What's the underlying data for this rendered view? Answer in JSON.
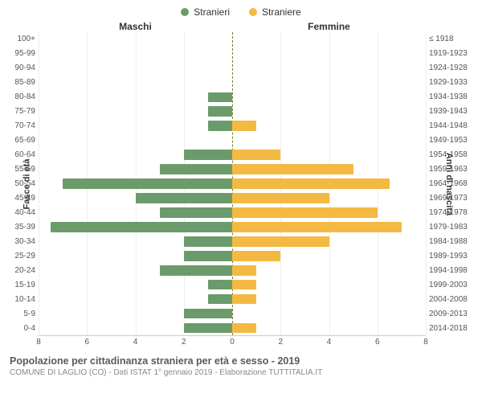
{
  "legend": {
    "male": "Stranieri",
    "female": "Straniere"
  },
  "colors": {
    "male": "#6b9b6b",
    "female": "#f4b942",
    "grid": "#eeeeee",
    "centerline": "#7a7a2a",
    "bg": "#ffffff"
  },
  "headers": {
    "left": "Maschi",
    "right": "Femmine"
  },
  "axis_titles": {
    "left": "Fasce di età",
    "right": "Anni di nascita"
  },
  "xmax": 8,
  "xticks": [
    8,
    6,
    4,
    2,
    0,
    2,
    4,
    6,
    8
  ],
  "rows": [
    {
      "age": "100+",
      "birth": "≤ 1918",
      "m": 0,
      "f": 0
    },
    {
      "age": "95-99",
      "birth": "1919-1923",
      "m": 0,
      "f": 0
    },
    {
      "age": "90-94",
      "birth": "1924-1928",
      "m": 0,
      "f": 0
    },
    {
      "age": "85-89",
      "birth": "1929-1933",
      "m": 0,
      "f": 0
    },
    {
      "age": "80-84",
      "birth": "1934-1938",
      "m": 1,
      "f": 0
    },
    {
      "age": "75-79",
      "birth": "1939-1943",
      "m": 1,
      "f": 0
    },
    {
      "age": "70-74",
      "birth": "1944-1948",
      "m": 1,
      "f": 1
    },
    {
      "age": "65-69",
      "birth": "1949-1953",
      "m": 0,
      "f": 0
    },
    {
      "age": "60-64",
      "birth": "1954-1958",
      "m": 2,
      "f": 2
    },
    {
      "age": "55-59",
      "birth": "1959-1963",
      "m": 3,
      "f": 5
    },
    {
      "age": "50-54",
      "birth": "1964-1968",
      "m": 7,
      "f": 6.5
    },
    {
      "age": "45-49",
      "birth": "1969-1973",
      "m": 4,
      "f": 4
    },
    {
      "age": "40-44",
      "birth": "1974-1978",
      "m": 3,
      "f": 6
    },
    {
      "age": "35-39",
      "birth": "1979-1983",
      "m": 7.5,
      "f": 7
    },
    {
      "age": "30-34",
      "birth": "1984-1988",
      "m": 2,
      "f": 4
    },
    {
      "age": "25-29",
      "birth": "1989-1993",
      "m": 2,
      "f": 2
    },
    {
      "age": "20-24",
      "birth": "1994-1998",
      "m": 3,
      "f": 1
    },
    {
      "age": "15-19",
      "birth": "1999-2003",
      "m": 1,
      "f": 1
    },
    {
      "age": "10-14",
      "birth": "2004-2008",
      "m": 1,
      "f": 1
    },
    {
      "age": "5-9",
      "birth": "2009-2013",
      "m": 2,
      "f": 0
    },
    {
      "age": "0-4",
      "birth": "2014-2018",
      "m": 2,
      "f": 1
    }
  ],
  "title": "Popolazione per cittadinanza straniera per età e sesso - 2019",
  "subtitle": "COMUNE DI LAGLIO (CO) - Dati ISTAT 1° gennaio 2019 - Elaborazione TUTTITALIA.IT",
  "font": {
    "base": 12,
    "label": 10,
    "title": 12.5,
    "sub": 10
  }
}
